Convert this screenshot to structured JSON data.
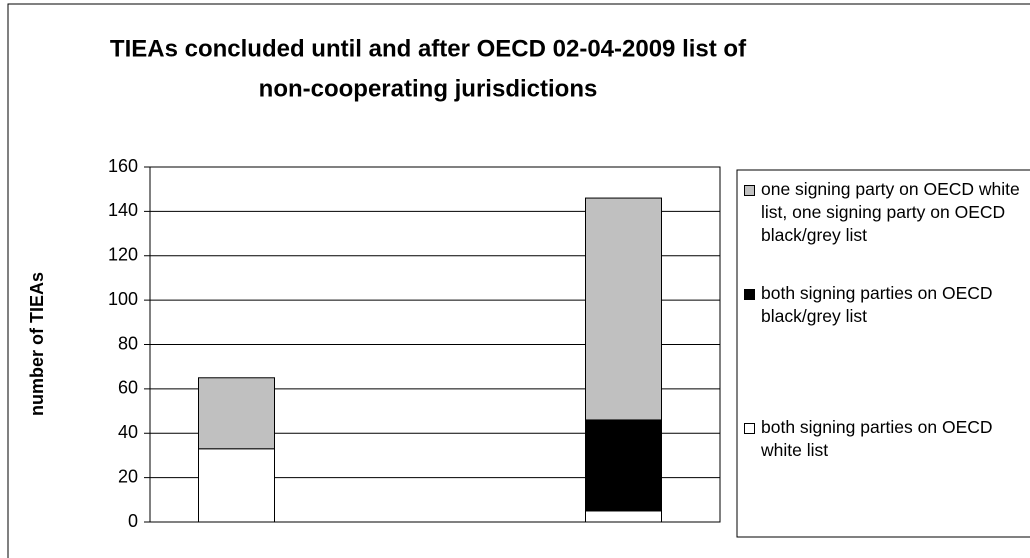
{
  "chart_data": {
    "type": "bar",
    "stacked": true,
    "title": "TIEAs concluded until and after OECD 02-04-2009 list of non-cooperating jurisdictions",
    "title_lines": [
      "TIEAs concluded until and after OECD 02-04-2009 list of",
      "non-cooperating jurisdictions"
    ],
    "y_label": "number of TIEAs",
    "categories": [
      null,
      null
    ],
    "series": [
      {
        "name": "both signing parties on OECD white list",
        "color": "#ffffff",
        "values": [
          33,
          5
        ]
      },
      {
        "name": "both signing parties on OECD black/grey list",
        "color": "#000000",
        "values": [
          0,
          41
        ]
      },
      {
        "name": "one signing party on OECD white list, one signing party on OECD black/grey list",
        "color": "#c0c0c0",
        "values": [
          32,
          100
        ]
      }
    ],
    "ylim": [
      0,
      160
    ],
    "yticks": [
      0,
      20,
      40,
      60,
      80,
      100,
      120,
      140,
      160
    ],
    "grid": true,
    "legend": "right"
  }
}
